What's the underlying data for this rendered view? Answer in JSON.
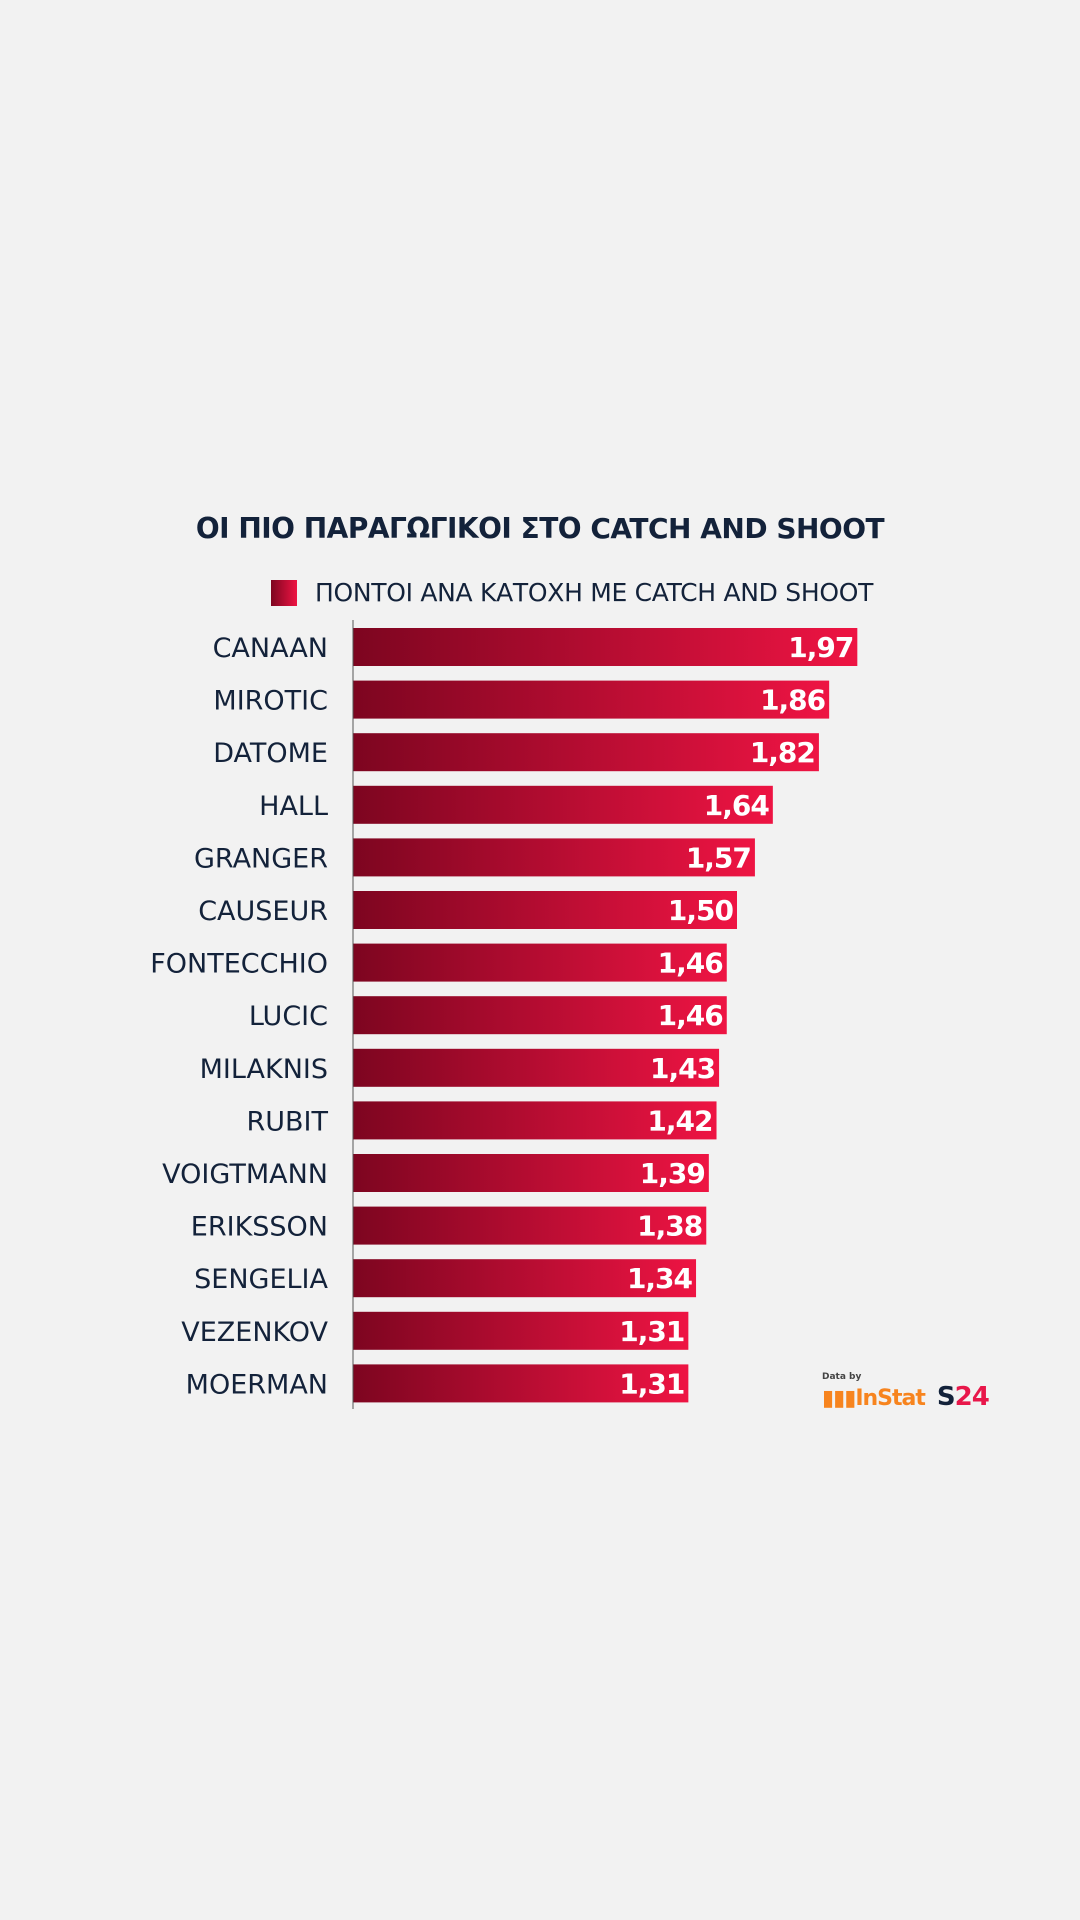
{
  "chart_data": {
    "type": "bar",
    "orientation": "horizontal",
    "title": "ΟΙ ΠΙΟ ΠΑΡΑΓΩΓΙΚΟΙ ΣΤΟ CATCH AND SHOOT",
    "legend": [
      "ΠΟΝΤΟΙ ΑΝΑ ΚΑΤΟΧΗ ΜΕ CATCH AND SHOOT"
    ],
    "legend_position": "top",
    "categories": [
      "CANAAN",
      "MIROTIC",
      "DATOME",
      "HALL",
      "GRANGER",
      "CAUSEUR",
      "FONTECCHIO",
      "LUCIC",
      "MILAKNIS",
      "RUBIT",
      "VOIGTMANN",
      "ERIKSSON",
      "SENGELIA",
      "VEZENKOV",
      "MOERMAN"
    ],
    "values": [
      1.97,
      1.86,
      1.82,
      1.64,
      1.57,
      1.5,
      1.46,
      1.46,
      1.43,
      1.42,
      1.39,
      1.38,
      1.34,
      1.31,
      1.31
    ],
    "labels": [
      "1,97",
      "1,86",
      "1,82",
      "1,64",
      "1,57",
      "1,50",
      "1,46",
      "1,46",
      "1,43",
      "1,42",
      "1,39",
      "1,38",
      "1,34",
      "1,31",
      "1,31"
    ],
    "xlim": [
      0,
      2.2
    ],
    "grid": false,
    "colors": {
      "bar_start": "#7d0520",
      "bar_end": "#ee1443",
      "text": "#13223a"
    }
  },
  "footer": {
    "data_by": "Data by",
    "instat": "InStat",
    "brand_s": "S",
    "brand_24": "24"
  }
}
